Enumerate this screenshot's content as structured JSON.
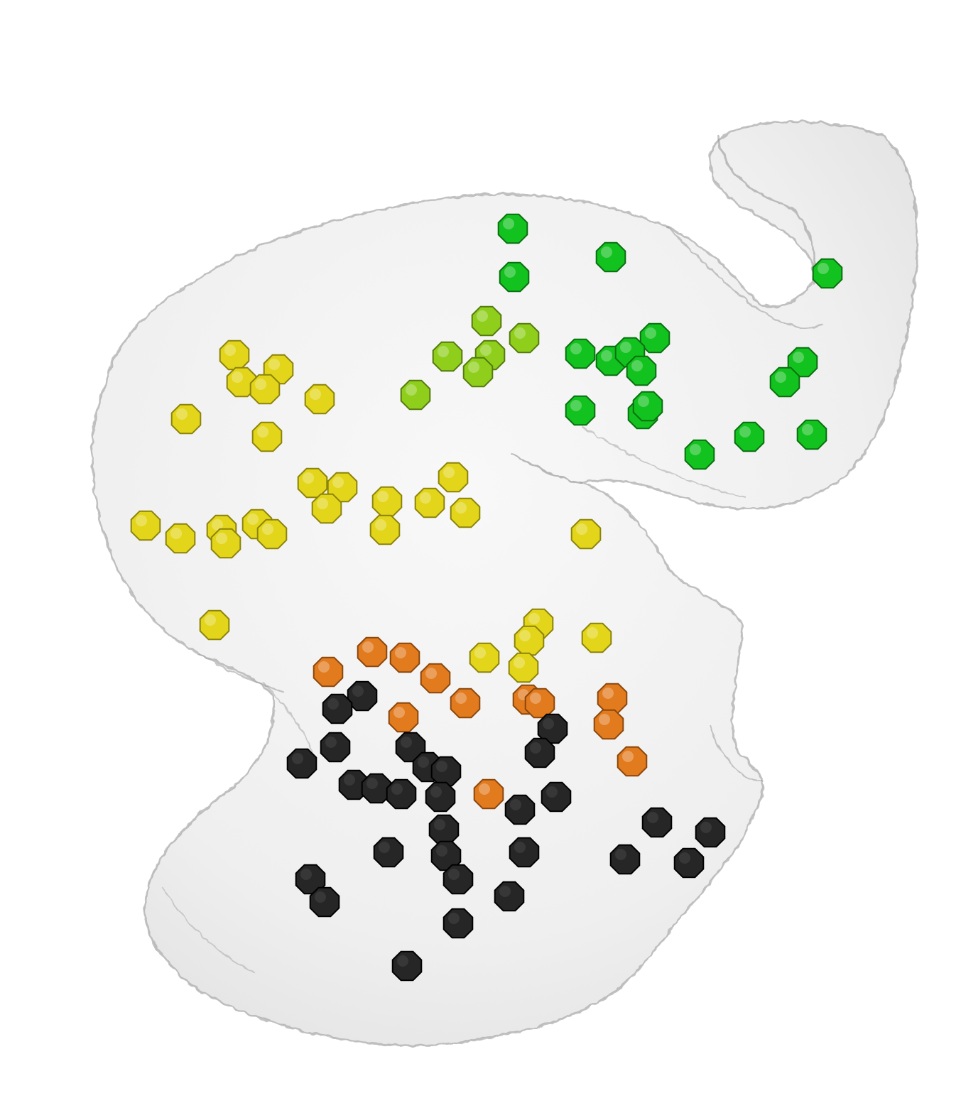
{
  "scene": {
    "background": "#ffffff",
    "surface_fill": "#ececec",
    "surface_edge": "#a8a8a8"
  },
  "groups": [
    {
      "name": "green",
      "fill": "#12c21e",
      "edge": "#0a6f10"
    },
    {
      "name": "light-green",
      "fill": "#8fcf1c",
      "edge": "#557a0e"
    },
    {
      "name": "yellow",
      "fill": "#e3d61a",
      "edge": "#8c830b"
    },
    {
      "name": "orange",
      "fill": "#e27a1e",
      "edge": "#8a470d"
    },
    {
      "name": "black",
      "fill": "#262626",
      "edge": "#000000"
    }
  ]
}
